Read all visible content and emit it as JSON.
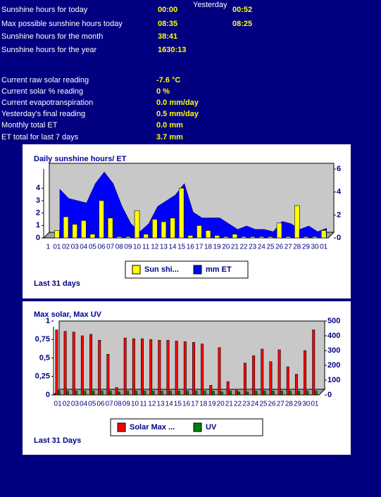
{
  "stats": {
    "yesterday_header": "Yesterday",
    "rows": [
      {
        "label": "Sunshine hours for today",
        "today": "00:00",
        "yesterday": "00:52"
      },
      {
        "label": "Max possible sunshine hours today",
        "today": "08:35",
        "yesterday": "08:25"
      },
      {
        "label": "Sunshine hours for the month",
        "today": "38:41"
      },
      {
        "label": "Sunshine hours for the year",
        "today": "1630:13"
      }
    ]
  },
  "readings": {
    "rows": [
      {
        "label": "Current raw solar reading",
        "value": "-7.6 °C"
      },
      {
        "label": "Current solar % reading",
        "value": "0 %"
      },
      {
        "label": "Current evapotranspiration",
        "value": "0.0 mm/day"
      },
      {
        "label": "Yesterday's final reading",
        "value": "0.5 mm/day"
      },
      {
        "label": "Monthly total ET",
        "value": "0.0 mm"
      },
      {
        "label": "ET total for last 7 days",
        "value": "3.7 mm"
      }
    ]
  },
  "chart_data": [
    {
      "type": "bar",
      "title": "Daily sunshine hours/ ET",
      "categories": [
        "1",
        "01",
        "02",
        "03",
        "04",
        "05",
        "06",
        "07",
        "08",
        "09",
        "10",
        "11",
        "12",
        "13",
        "14",
        "15",
        "16",
        "17",
        "18",
        "19",
        "20",
        "21",
        "22",
        "23",
        "24",
        "25",
        "26",
        "27",
        "28",
        "29",
        "30",
        "01"
      ],
      "series": [
        {
          "name": "Sun shi...",
          "color": "#ffff00",
          "type": "bar",
          "values": [
            null,
            0.6,
            1.7,
            1.1,
            1.4,
            0.3,
            3.0,
            1.6,
            0.1,
            0.1,
            2.2,
            0.3,
            1.5,
            1.3,
            1.6,
            4.0,
            0.2,
            1.0,
            0.6,
            0.2,
            0.1,
            0.3,
            0.1,
            0.1,
            0.1,
            0.1,
            1.2,
            0.1,
            2.6,
            0.1,
            0.1,
            0.6
          ]
        },
        {
          "name": "mm ET",
          "color": "#0000ff",
          "type": "area",
          "axis": "y2",
          "values": [
            null,
            4.0,
            3.2,
            3.0,
            2.8,
            4.5,
            5.5,
            4.5,
            2.5,
            1.0,
            0.3,
            1.0,
            2.5,
            3.0,
            3.5,
            4.5,
            2.0,
            1.5,
            1.5,
            1.5,
            1.0,
            0.5,
            0.8,
            0.5,
            0.5,
            0.3,
            1.2,
            1.0,
            0.5,
            0.8,
            0.3,
            0.6
          ]
        }
      ],
      "ylim": [
        0,
        6
      ],
      "yticks": [
        0,
        1,
        2,
        3,
        4
      ],
      "y2lim": [
        0,
        6.5
      ],
      "y2ticks": [
        0,
        2,
        4,
        6
      ],
      "footer": "Last 31 days"
    },
    {
      "type": "bar",
      "title": "Max solar, Max UV",
      "categories": [
        "01",
        "02",
        "03",
        "04",
        "05",
        "06",
        "07",
        "08",
        "09",
        "10",
        "11",
        "12",
        "13",
        "14",
        "15",
        "16",
        "17",
        "18",
        "19",
        "20",
        "21",
        "22",
        "23",
        "24",
        "25",
        "26",
        "27",
        "28",
        "29",
        "30",
        "01"
      ],
      "series": [
        {
          "name": "Solar Max ...",
          "color": "#ff0000",
          "type": "bar",
          "axis": "y2",
          "values": [
            440,
            430,
            425,
            400,
            410,
            370,
            275,
            50,
            385,
            380,
            380,
            375,
            370,
            370,
            365,
            360,
            355,
            345,
            65,
            320,
            90,
            30,
            215,
            265,
            310,
            225,
            305,
            190,
            140,
            300,
            440
          ]
        },
        {
          "name": "UV",
          "color": "#008000",
          "type": "bar",
          "values": [
            0.05,
            0.05,
            0.05,
            0.05,
            0.05,
            0.05,
            0.05,
            0.04,
            0.05,
            0.05,
            0.05,
            0.05,
            0.05,
            0.05,
            0.05,
            0.05,
            0.05,
            0.05,
            0.05,
            0.04,
            0.05,
            0.04,
            0.04,
            0.05,
            0.05,
            0.05,
            0.05,
            0.05,
            0.05,
            0.05,
            0.05
          ]
        }
      ],
      "ylim": [
        0,
        1
      ],
      "yticks": [
        0,
        {
          "value": 0.25,
          "label": "0,25"
        },
        {
          "value": 0.5,
          "label": "0,5"
        },
        {
          "value": 0.75,
          "label": "0,75"
        },
        1
      ],
      "y2lim": [
        0,
        500
      ],
      "y2ticks": [
        0,
        100,
        200,
        300,
        400,
        500
      ],
      "footer": "Last 31 Days"
    }
  ]
}
